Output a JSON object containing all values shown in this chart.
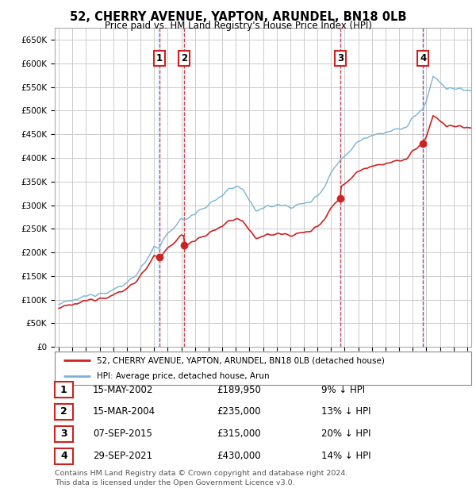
{
  "title": "52, CHERRY AVENUE, YAPTON, ARUNDEL, BN18 0LB",
  "subtitle": "Price paid vs. HM Land Registry's House Price Index (HPI)",
  "background_color": "#ffffff",
  "grid_color": "#cccccc",
  "plot_bg_color": "#ffffff",
  "hpi_line_color": "#7ab3d4",
  "price_line_color": "#cc2222",
  "transactions": [
    {
      "num": 1,
      "date_str": "15-MAY-2002",
      "date_x": 2002.37,
      "price": 189950,
      "price_str": "£189,950",
      "pct": "9%"
    },
    {
      "num": 2,
      "date_str": "15-MAR-2004",
      "date_x": 2004.21,
      "price": 235000,
      "price_str": "£235,000",
      "pct": "13%"
    },
    {
      "num": 3,
      "date_str": "07-SEP-2015",
      "date_x": 2015.69,
      "price": 315000,
      "price_str": "£315,000",
      "pct": "20%"
    },
    {
      "num": 4,
      "date_str": "29-SEP-2021",
      "date_x": 2021.75,
      "price": 430000,
      "price_str": "£430,000",
      "pct": "14%"
    }
  ],
  "legend_line1": "52, CHERRY AVENUE, YAPTON, ARUNDEL, BN18 0LB (detached house)",
  "legend_line2": "HPI: Average price, detached house, Arun",
  "footer_line1": "Contains HM Land Registry data © Crown copyright and database right 2024.",
  "footer_line2": "This data is licensed under the Open Government Licence v3.0.",
  "ylim_min": 0,
  "ylim_max": 675000,
  "xlim_min": 1994.7,
  "xlim_max": 2025.3,
  "ytick_interval": 50000
}
